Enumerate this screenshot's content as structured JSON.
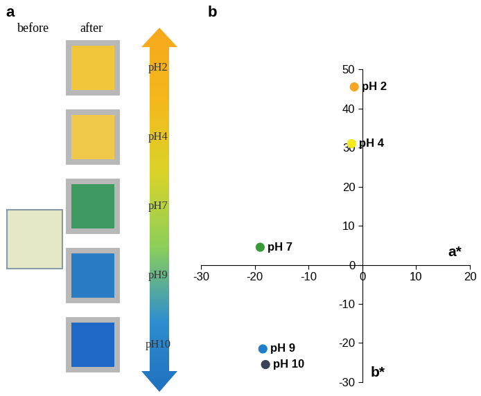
{
  "panel_a": {
    "label": "a",
    "before_label": "before",
    "after_label": "after",
    "before_color": "#e4e8c4",
    "samples": [
      {
        "name": "pH2",
        "color": "#f1c63a"
      },
      {
        "name": "pH4",
        "color": "#f0c94a"
      },
      {
        "name": "pH7",
        "color": "#3f9a62"
      },
      {
        "name": "pH9",
        "color": "#2a7dc2"
      },
      {
        "name": "pH10",
        "color": "#1f68c6"
      }
    ]
  },
  "chart_data": {
    "type": "scatter",
    "label": "b",
    "x_label": "a*",
    "y_label": "b*",
    "xlim": [
      -30,
      20
    ],
    "xticks": [
      -30,
      -20,
      -10,
      0,
      10,
      20
    ],
    "ylim": [
      -30,
      50
    ],
    "yticks": [
      -30,
      -20,
      -10,
      0,
      10,
      20,
      30,
      40,
      50
    ],
    "points": [
      {
        "name": "pH 2",
        "color": "#f5a623",
        "x": -1.5,
        "y": 45.5
      },
      {
        "name": "pH 4",
        "color": "#f7ea1c",
        "x": -2,
        "y": 31
      },
      {
        "name": "pH 7",
        "color": "#3a9a3a",
        "x": -19,
        "y": 4.5
      },
      {
        "name": "pH 9",
        "color": "#1f7fc8",
        "x": -18.5,
        "y": -21.5
      },
      {
        "name": "pH 10",
        "color": "#3b4256",
        "x": -18,
        "y": -25.5
      }
    ]
  }
}
